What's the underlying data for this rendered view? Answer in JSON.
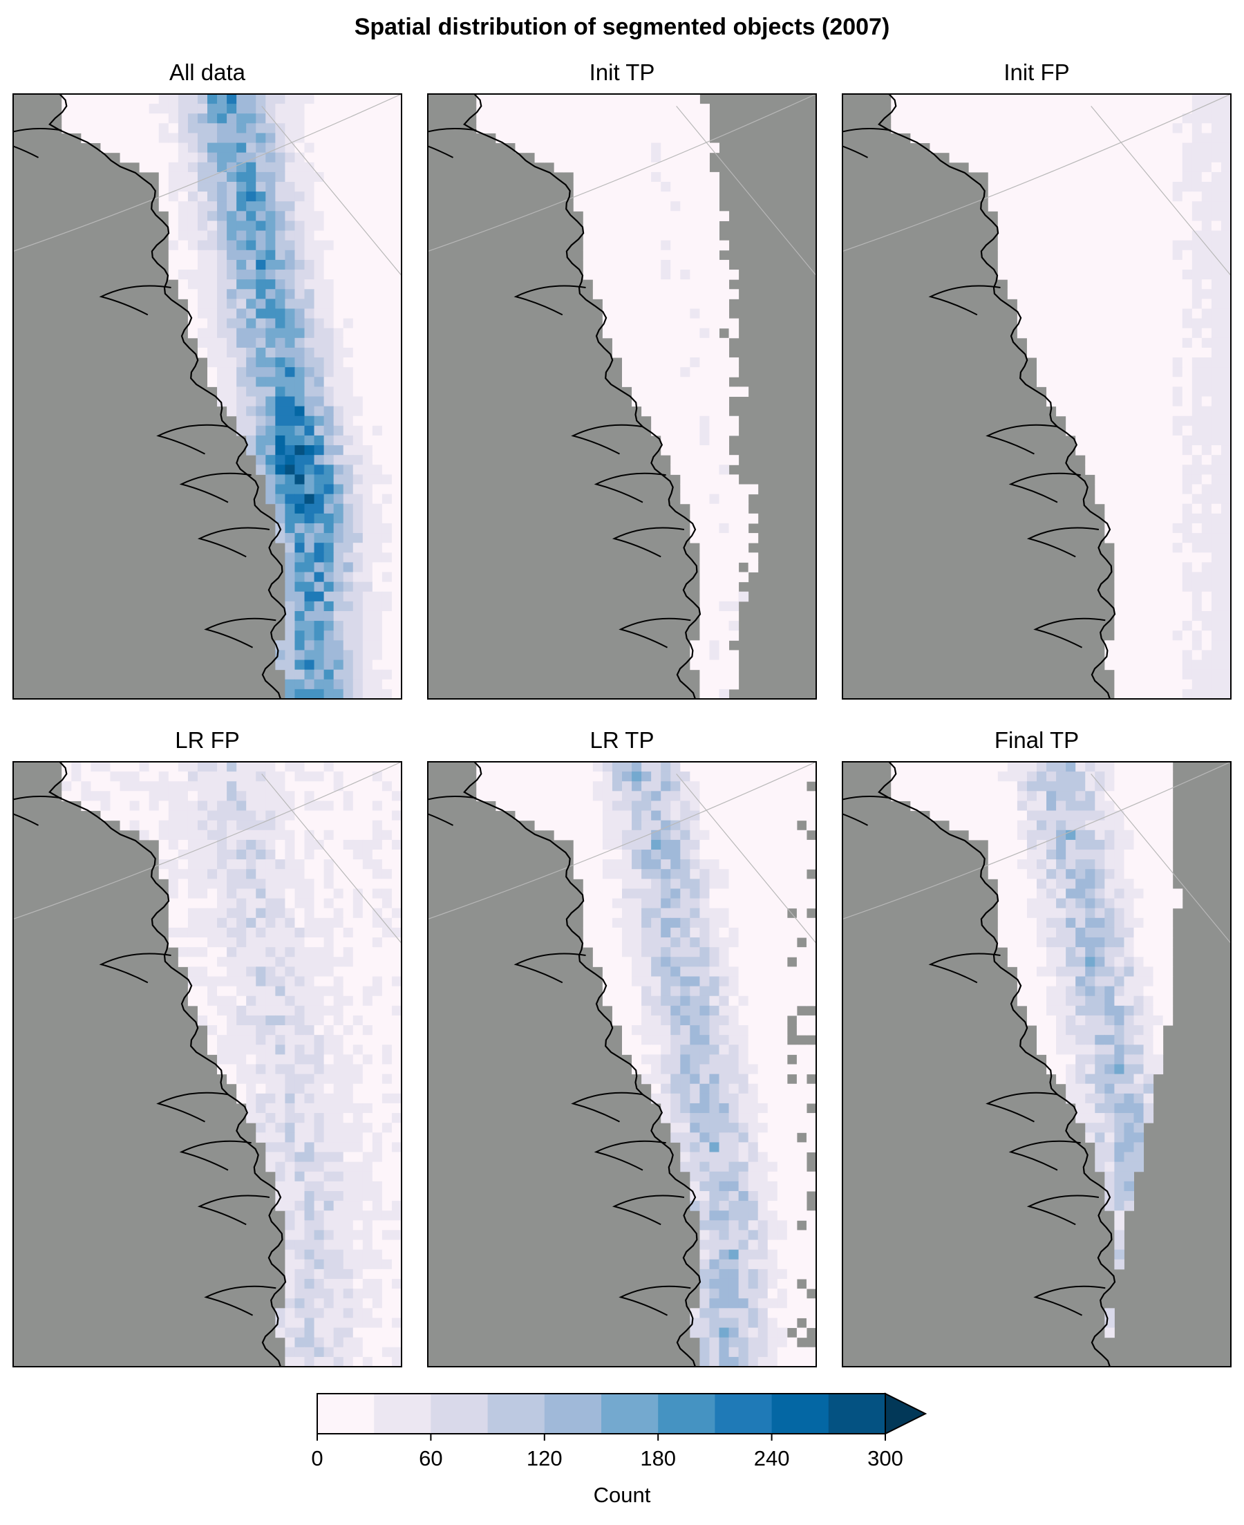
{
  "figure": {
    "title": "Spatial distribution of segmented objects (2007)"
  },
  "colors": {
    "land": "#8f918f",
    "ocean_background": "#fdf5fa",
    "coastline": "#000000",
    "graticule": "#b8b8b8",
    "bins": [
      "#fdf5fa",
      "#ece7f2",
      "#d9d9ea",
      "#bdc9e1",
      "#a0b9d9",
      "#74a9cf",
      "#4593c2",
      "#1f7ab7",
      "#0467a4",
      "#045282",
      "#023858"
    ]
  },
  "chart_data": [
    {
      "type": "heatmap",
      "title": "All data",
      "value_range": [
        0,
        300
      ],
      "description_values": {
        "peak": 300,
        "typical_core": 160
      }
    },
    {
      "type": "heatmap",
      "title": "Init TP",
      "value_range": [
        0,
        60
      ],
      "description_values": {
        "peak": 60,
        "typical_core": 15
      }
    },
    {
      "type": "heatmap",
      "title": "Init FP",
      "value_range": [
        0,
        60
      ],
      "description_values": {
        "peak": 45,
        "typical_core": 30
      }
    },
    {
      "type": "heatmap",
      "title": "LR FP",
      "value_range": [
        0,
        120
      ],
      "description_values": {
        "peak": 90,
        "typical_core": 50
      }
    },
    {
      "type": "heatmap",
      "title": "LR TP",
      "value_range": [
        0,
        240
      ],
      "description_values": {
        "peak": 210,
        "typical_core": 100
      }
    },
    {
      "type": "heatmap",
      "title": "Final TP",
      "value_range": [
        0,
        240
      ],
      "description_values": {
        "peak": 210,
        "typical_core": 100
      }
    }
  ],
  "colorbar": {
    "label": "Count",
    "min": 0,
    "max": 300,
    "step": 30,
    "extend": "max",
    "ticks": [
      "0",
      "60",
      "120",
      "180",
      "240",
      "300"
    ]
  }
}
